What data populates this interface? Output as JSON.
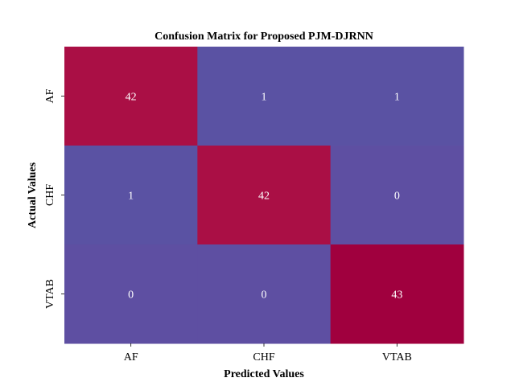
{
  "chart_data": {
    "type": "heatmap",
    "title": "Confusion Matrix for Proposed PJM-DJRNN",
    "xlabel": "Predicted Values",
    "ylabel": "Actual Values",
    "x_categories": [
      "AF",
      "CHF",
      "VTAB"
    ],
    "y_categories": [
      "AF",
      "CHF",
      "VTAB"
    ],
    "values": [
      [
        42,
        1,
        1
      ],
      [
        1,
        42,
        0
      ],
      [
        0,
        0,
        43
      ]
    ],
    "colors": {
      "low": "#5059a5",
      "mid": "#5e4fa2",
      "high": "#ac0d43",
      "max": "#a0003e",
      "annotation": "#ffffff"
    },
    "colorbar": false
  }
}
